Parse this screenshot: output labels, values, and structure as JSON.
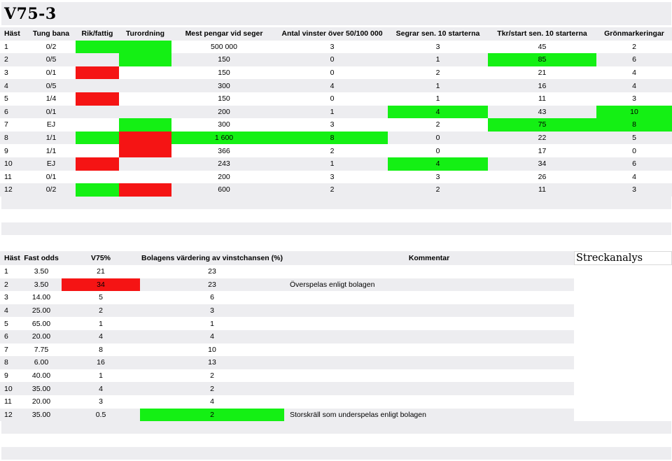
{
  "title": "V75-3",
  "table1": {
    "headers": [
      "Häst",
      "Tung bana",
      "Rik/fattig",
      "Turordning",
      "Mest pengar vid seger",
      "Antal vinster över 50/100 000",
      "Segrar sen. 10 starterna",
      "Tkr/start sen. 10 starterna",
      "Grönmarkeringar"
    ],
    "rows": [
      {
        "cells": [
          "1",
          "0/2",
          "",
          "",
          "500 000",
          "3",
          "3",
          "45",
          "2"
        ],
        "colors": [
          "",
          "",
          "g",
          "g",
          "",
          "",
          "",
          "",
          ""
        ]
      },
      {
        "cells": [
          "2",
          "0/5",
          "",
          "",
          "150",
          "0",
          "1",
          "85",
          "6"
        ],
        "colors": [
          "",
          "",
          "",
          "g",
          "",
          "",
          "",
          "g",
          ""
        ]
      },
      {
        "cells": [
          "3",
          "0/1",
          "",
          "",
          "150",
          "0",
          "2",
          "21",
          "4"
        ],
        "colors": [
          "",
          "",
          "r",
          "",
          "",
          "",
          "",
          "",
          ""
        ]
      },
      {
        "cells": [
          "4",
          "0/5",
          "",
          "",
          "300",
          "4",
          "1",
          "16",
          "4"
        ],
        "colors": [
          "",
          "",
          "",
          "",
          "",
          "",
          "",
          "",
          ""
        ]
      },
      {
        "cells": [
          "5",
          "1/4",
          "",
          "",
          "150",
          "0",
          "1",
          "11",
          "3"
        ],
        "colors": [
          "",
          "",
          "r",
          "",
          "",
          "",
          "",
          "",
          ""
        ]
      },
      {
        "cells": [
          "6",
          "0/1",
          "",
          "",
          "200",
          "1",
          "4",
          "43",
          "10"
        ],
        "colors": [
          "",
          "",
          "",
          "",
          "",
          "",
          "g",
          "",
          "g"
        ]
      },
      {
        "cells": [
          "7",
          "EJ",
          "",
          "",
          "300",
          "3",
          "2",
          "75",
          "8"
        ],
        "colors": [
          "",
          "",
          "",
          "g",
          "",
          "",
          "",
          "g",
          "g"
        ]
      },
      {
        "cells": [
          "8",
          "1/1",
          "",
          "",
          "1 600",
          "8",
          "0",
          "22",
          "5"
        ],
        "colors": [
          "",
          "",
          "g",
          "r",
          "g",
          "g",
          "",
          "",
          ""
        ]
      },
      {
        "cells": [
          "9",
          "1/1",
          "",
          "",
          "366",
          "2",
          "0",
          "17",
          "0"
        ],
        "colors": [
          "",
          "",
          "",
          "r",
          "",
          "",
          "",
          "",
          ""
        ]
      },
      {
        "cells": [
          "10",
          "EJ",
          "",
          "",
          "243",
          "1",
          "4",
          "34",
          "6"
        ],
        "colors": [
          "",
          "",
          "r",
          "",
          "",
          "",
          "g",
          "",
          ""
        ]
      },
      {
        "cells": [
          "11",
          "0/1",
          "",
          "",
          "200",
          "3",
          "3",
          "26",
          "4"
        ],
        "colors": [
          "",
          "",
          "",
          "",
          "",
          "",
          "",
          "",
          ""
        ]
      },
      {
        "cells": [
          "12",
          "0/2",
          "",
          "",
          "600",
          "2",
          "2",
          "11",
          "3"
        ],
        "colors": [
          "",
          "",
          "g",
          "r",
          "",
          "",
          "",
          "",
          ""
        ]
      }
    ]
  },
  "table2": {
    "headers": [
      "Häst",
      "Fast odds",
      "V75%",
      "Bolagens värdering av vinstchansen (%)",
      "Kommentar"
    ],
    "streckanalys_label": "Streckanalys",
    "rows": [
      {
        "cells": [
          "1",
          "3.50",
          "21",
          "23",
          ""
        ],
        "colors": [
          "",
          "",
          "",
          "",
          ""
        ]
      },
      {
        "cells": [
          "2",
          "3.50",
          "34",
          "23",
          "Överspelas enligt bolagen"
        ],
        "colors": [
          "",
          "",
          "r",
          "",
          ""
        ]
      },
      {
        "cells": [
          "3",
          "14.00",
          "5",
          "6",
          ""
        ],
        "colors": [
          "",
          "",
          "",
          "",
          ""
        ]
      },
      {
        "cells": [
          "4",
          "25.00",
          "2",
          "3",
          ""
        ],
        "colors": [
          "",
          "",
          "",
          "",
          ""
        ]
      },
      {
        "cells": [
          "5",
          "65.00",
          "1",
          "1",
          ""
        ],
        "colors": [
          "",
          "",
          "",
          "",
          ""
        ]
      },
      {
        "cells": [
          "6",
          "20.00",
          "4",
          "4",
          ""
        ],
        "colors": [
          "",
          "",
          "",
          "",
          ""
        ]
      },
      {
        "cells": [
          "7",
          "7.75",
          "8",
          "10",
          ""
        ],
        "colors": [
          "",
          "",
          "",
          "",
          ""
        ]
      },
      {
        "cells": [
          "8",
          "6.00",
          "16",
          "13",
          ""
        ],
        "colors": [
          "",
          "",
          "",
          "",
          ""
        ]
      },
      {
        "cells": [
          "9",
          "40.00",
          "1",
          "2",
          ""
        ],
        "colors": [
          "",
          "",
          "",
          "",
          ""
        ]
      },
      {
        "cells": [
          "10",
          "35.00",
          "4",
          "2",
          ""
        ],
        "colors": [
          "",
          "",
          "",
          "",
          ""
        ]
      },
      {
        "cells": [
          "11",
          "20.00",
          "3",
          "4",
          ""
        ],
        "colors": [
          "",
          "",
          "",
          "",
          ""
        ]
      },
      {
        "cells": [
          "12",
          "35.00",
          "0.5",
          "2",
          "Storskräll som underspelas enligt bolagen"
        ],
        "colors": [
          "",
          "",
          "",
          "g",
          ""
        ]
      }
    ]
  },
  "colors": {
    "green": "#14f014",
    "red": "#f51414",
    "band": "#ededf0"
  }
}
